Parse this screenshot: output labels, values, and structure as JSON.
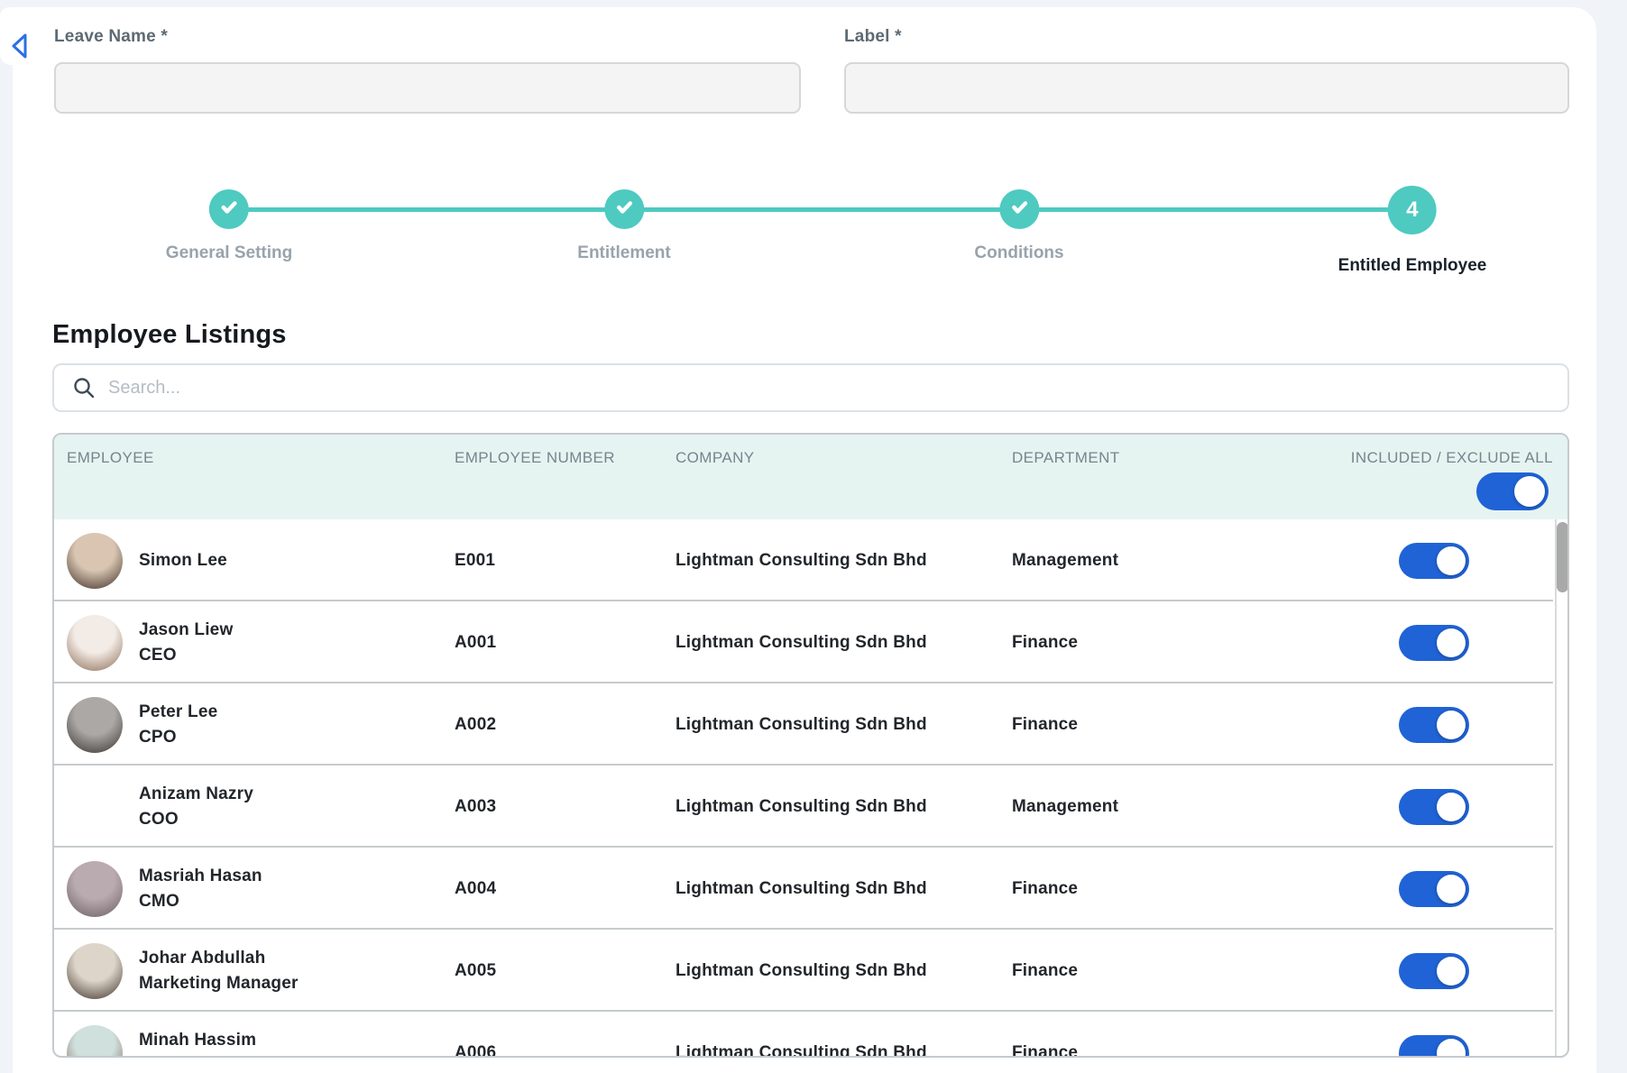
{
  "colors": {
    "accent_teal": "#4ecac1",
    "toggle_blue": "#2063d6",
    "table_header_bg": "#e6f4f1"
  },
  "back_button": {
    "icon": "chevron-left-icon"
  },
  "form": {
    "fields": [
      {
        "label": "Leave Name *",
        "value": "",
        "placeholder": ""
      },
      {
        "label": "Label *",
        "value": "",
        "placeholder": ""
      }
    ]
  },
  "stepper": {
    "steps": [
      {
        "label": "General Setting",
        "state": "completed"
      },
      {
        "label": "Entitlement",
        "state": "completed"
      },
      {
        "label": "Conditions",
        "state": "completed"
      },
      {
        "label": "Entitled Employee",
        "state": "active",
        "number": "4"
      }
    ]
  },
  "listing": {
    "title": "Employee Listings",
    "search": {
      "placeholder": "Search...",
      "icon": "search-icon"
    },
    "table": {
      "columns": [
        "EMPLOYEE",
        "EMPLOYEE NUMBER",
        "COMPANY",
        "DEPARTMENT",
        "INCLUDED / EXCLUDE ALL"
      ],
      "include_exclude_all": true,
      "rows": [
        {
          "name": "Simon Lee",
          "subtitle": null,
          "number": "E001",
          "company": "Lightman Consulting Sdn Bhd",
          "department": "Management",
          "included": true,
          "avatar_colors": [
            "#d9c5b2",
            "#3a2c22"
          ]
        },
        {
          "name": "Jason Liew",
          "subtitle": "CEO",
          "number": "A001",
          "company": "Lightman Consulting Sdn Bhd",
          "department": "Finance",
          "included": true,
          "avatar_colors": [
            "#f3ece6",
            "#8a6a52"
          ]
        },
        {
          "name": "Peter Lee",
          "subtitle": "CPO",
          "number": "A002",
          "company": "Lightman Consulting Sdn Bhd",
          "department": "Finance",
          "included": true,
          "avatar_colors": [
            "#aba8a5",
            "#35302d"
          ]
        },
        {
          "name": "Anizam Nazry",
          "subtitle": "COO",
          "number": "A003",
          "company": "Lightman Consulting Sdn Bhd",
          "department": "Management",
          "included": true,
          "avatar_colors": [
            "#cba globe",
            "#4b3a31"
          ]
        },
        {
          "name": "Masriah Hasan",
          "subtitle": "CMO",
          "number": "A004",
          "company": "Lightman Consulting Sdn Bhd",
          "department": "Finance",
          "included": true,
          "avatar_colors": [
            "#b9abaf",
            "#695d64"
          ]
        },
        {
          "name": "Johar Abdullah",
          "subtitle": "Marketing Manager",
          "number": "A005",
          "company": "Lightman Consulting Sdn Bhd",
          "department": "Finance",
          "included": true,
          "avatar_colors": [
            "#ddd5c9",
            "#3c2f26"
          ]
        },
        {
          "name": "Minah Hassim",
          "subtitle": "",
          "number": "A006",
          "company": "Lightman Consulting Sdn Bhd",
          "department": "Finance",
          "included": true,
          "avatar_colors": [
            "#cfe0dd",
            "#7a5c4a"
          ]
        }
      ]
    }
  }
}
